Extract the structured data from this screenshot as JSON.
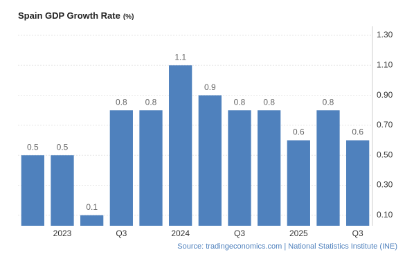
{
  "chart_data": {
    "type": "bar",
    "title": "Spain GDP Growth Rate",
    "unit": "(%)",
    "source": "Source: tradingeconomics.com | National Statistics Institute (INE)",
    "categories": [
      null,
      "2023",
      null,
      "Q3",
      null,
      "2024",
      null,
      "Q3",
      null,
      "2025",
      null,
      "Q3"
    ],
    "values": [
      0.5,
      0.5,
      0.1,
      0.8,
      0.8,
      1.1,
      0.9,
      0.8,
      0.8,
      0.6,
      0.8,
      0.6
    ],
    "color": "#4f81bd",
    "ylim": [
      0.03,
      1.36
    ],
    "yticks": [
      {
        "value": 0.1,
        "label": "0.10"
      },
      {
        "value": 0.3,
        "label": "0.30"
      },
      {
        "value": 0.5,
        "label": "0.50"
      },
      {
        "value": 0.7,
        "label": "0.70"
      },
      {
        "value": 0.9,
        "label": "0.90"
      },
      {
        "value": 1.1,
        "label": "1.10"
      },
      {
        "value": 1.3,
        "label": "1.30"
      }
    ],
    "grid": true,
    "y_axis_side": "right"
  }
}
